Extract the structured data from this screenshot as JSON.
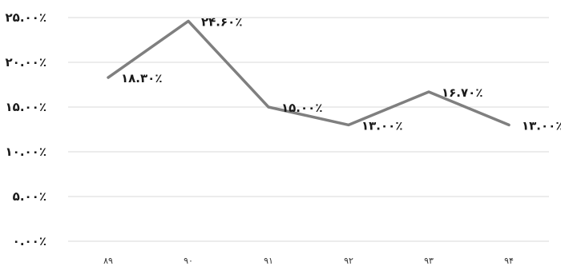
{
  "chart_data": {
    "type": "line",
    "categories": [
      "۸۹",
      "۹۰",
      "۹۱",
      "۹۲",
      "۹۳",
      "۹۴"
    ],
    "series": [
      {
        "values": [
          18.3,
          24.6,
          15.0,
          13.0,
          16.7,
          13.0
        ],
        "data_labels": [
          "۱۸.۳۰٪",
          "۲۴.۶۰٪",
          "۱۵.۰۰٪",
          "۱۳.۰۰٪",
          "۱۶.۷۰٪",
          "۱۳.۰۰٪"
        ],
        "color": "#7f7f7f"
      }
    ],
    "y_ticks": [
      0,
      5,
      10,
      15,
      20,
      25
    ],
    "y_tick_labels": [
      "۰.۰۰٪",
      "۵.۰۰٪",
      "۱۰.۰۰٪",
      "۱۵.۰۰٪",
      "۲۰.۰۰٪",
      "۲۵.۰۰٪"
    ],
    "ylim": [
      0,
      25
    ],
    "grid": true,
    "legend": "none"
  }
}
